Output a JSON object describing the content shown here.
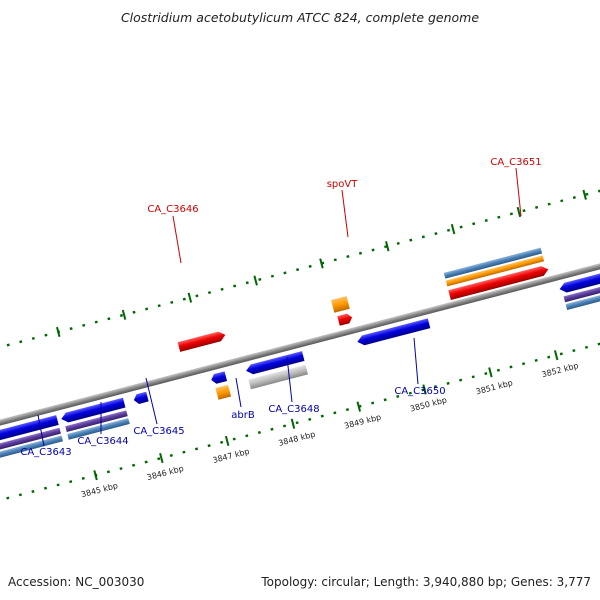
{
  "title": "Clostridium acetobutylicum ATCC 824, complete genome",
  "footer": {
    "accession": "Accession: NC_003030",
    "summary": "Topology: circular; Length: 3,940,880 bp; Genes: 3,777"
  },
  "scale_ticks": [
    "3845 kbp",
    "3846 kbp",
    "3847 kbp",
    "3848 kbp",
    "3849 kbp",
    "3850 kbp",
    "3851 kbp",
    "3852 kbp"
  ],
  "gene_labels": {
    "forward": [
      "CA_C3646",
      "spoVT",
      "CA_C3651"
    ],
    "reverse": [
      "CA_C3643",
      "CA_C3644",
      "CA_C3645",
      "abrB",
      "CA_C3648",
      "CA_C3650"
    ]
  },
  "colors": {
    "forward_cds": "#ee0000",
    "reverse_cds": "#0000dd",
    "orange_feature": "#ff9900",
    "purple_feature": "#5a3a9a",
    "steel_feature": "#4a7fb5",
    "gray_feature": "#bbbbbb",
    "backbone": "#888888",
    "tick_green": "#006600",
    "forward_label": "#cc0000",
    "reverse_label": "#0000aa"
  }
}
